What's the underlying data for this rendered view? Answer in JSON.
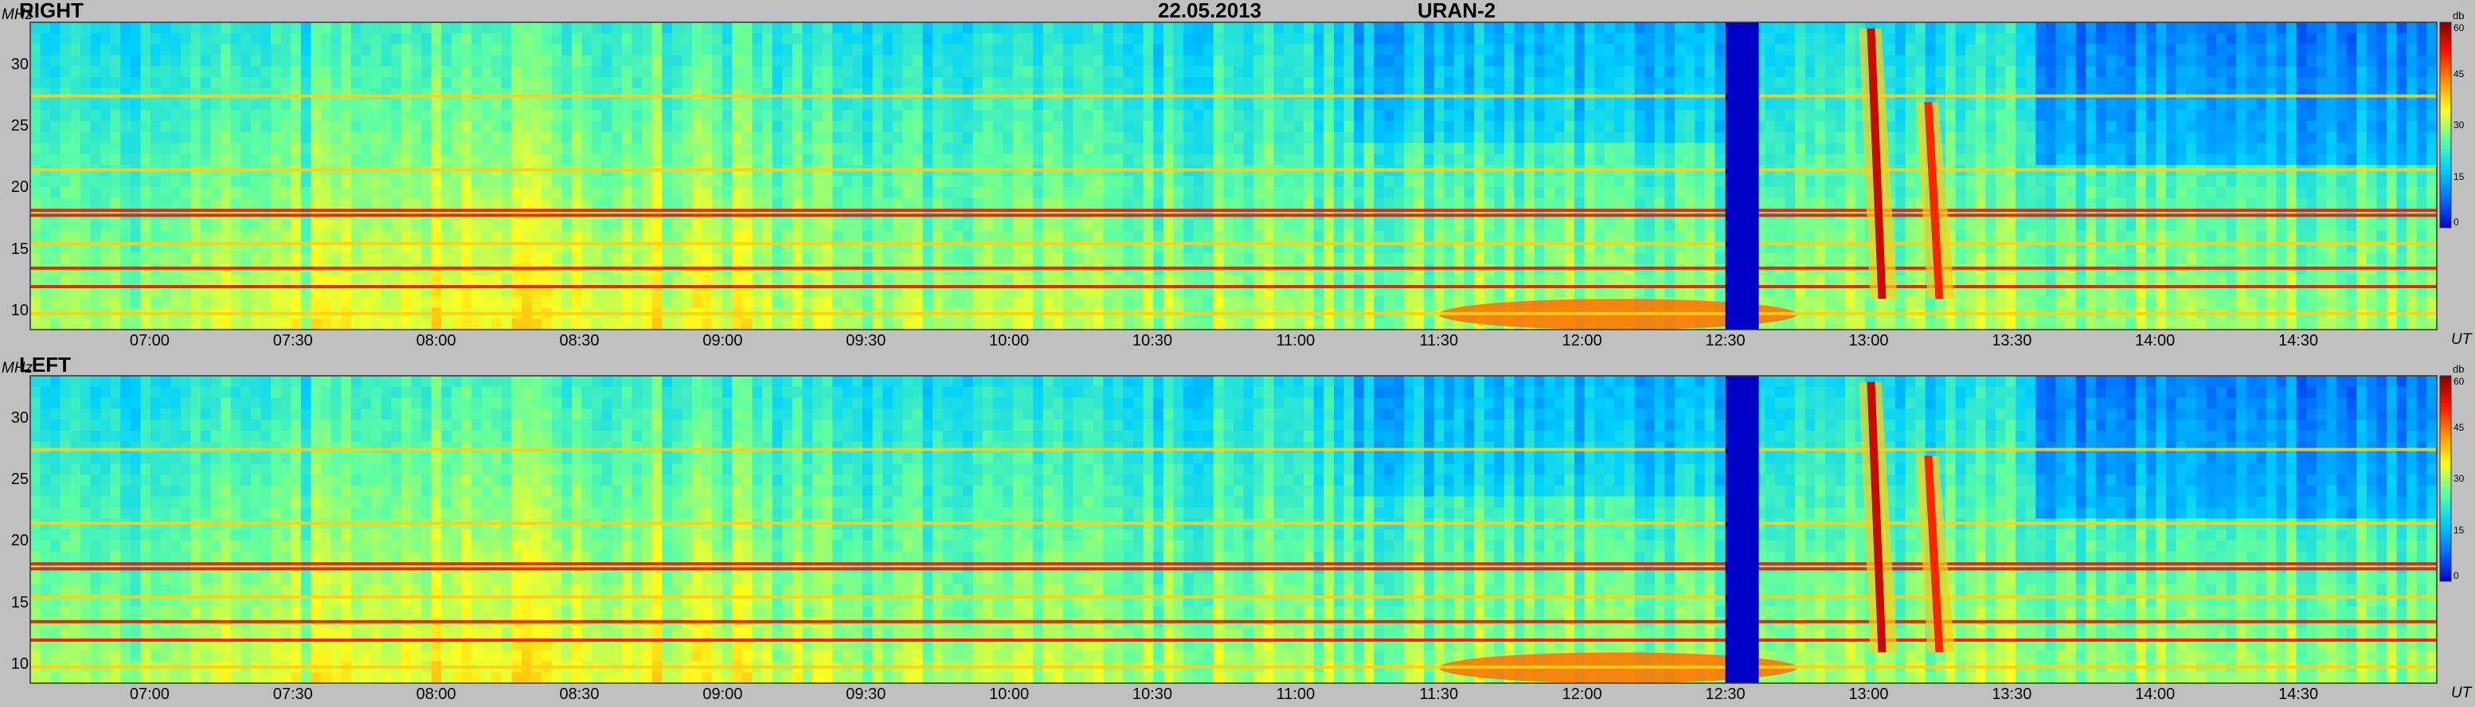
{
  "header": {
    "date": "22.05.2013",
    "instrument": "URAN-2"
  },
  "units": {
    "y": "MHz",
    "x": "UT",
    "colorbar": "db"
  },
  "panels": [
    {
      "id": "right",
      "label": "RIGHT"
    },
    {
      "id": "left",
      "label": "LEFT"
    }
  ],
  "chart_data": {
    "type": "heatmap",
    "title": "22.05.2013 URAN-2",
    "xlabel": "UT",
    "ylabel": "MHz",
    "colorbar_label": "db",
    "x_range": [
      "06:35",
      "14:59"
    ],
    "y_range": [
      8.5,
      33.5
    ],
    "x_ticks": [
      "07:00",
      "07:30",
      "08:00",
      "08:30",
      "09:00",
      "09:30",
      "10:00",
      "10:30",
      "11:00",
      "11:30",
      "12:00",
      "12:30",
      "13:00",
      "13:30",
      "14:00",
      "14:30"
    ],
    "y_ticks": [
      "10",
      "15",
      "20",
      "25",
      "30"
    ],
    "colorbar_ticks": [
      "0",
      "15",
      "30",
      "45",
      "60"
    ],
    "colorbar_range": [
      0,
      60
    ],
    "colormap": [
      "#0000c8",
      "#0070ff",
      "#00d0ff",
      "#60ffa0",
      "#ffff20",
      "#ff9000",
      "#ff1000",
      "#800000"
    ],
    "panels": [
      {
        "name": "RIGHT",
        "data_gap_ut": [
          "12:30",
          "12:37"
        ],
        "interference_lines_mhz": [
          9.8,
          12,
          13.5,
          15.5,
          17.8,
          18.2,
          21.5,
          27.5
        ],
        "bursts": [
          {
            "kind": "type III drifting burst",
            "ut": "13:01",
            "freq_mhz": [
              11,
              33
            ],
            "db": 55
          },
          {
            "kind": "type III drifting burst",
            "ut": "13:13",
            "freq_mhz": [
              11,
              27
            ],
            "db": 50
          },
          {
            "kind": "continuum",
            "ut": [
              "11:30",
              "12:45"
            ],
            "freq_mhz": [
              8.5,
              11
            ],
            "db": 45
          }
        ]
      },
      {
        "name": "LEFT",
        "data_gap_ut": [
          "12:30",
          "12:37"
        ],
        "interference_lines_mhz": [
          9.8,
          12,
          13.5,
          15.5,
          17.8,
          18.2,
          21.5,
          27.5
        ],
        "bursts": [
          {
            "kind": "type III drifting burst",
            "ut": "13:01",
            "freq_mhz": [
              11,
              33
            ],
            "db": 55
          },
          {
            "kind": "type III drifting burst",
            "ut": "13:13",
            "freq_mhz": [
              11,
              27
            ],
            "db": 50
          },
          {
            "kind": "continuum",
            "ut": [
              "11:30",
              "12:45"
            ],
            "freq_mhz": [
              8.5,
              11
            ],
            "db": 45
          }
        ]
      }
    ]
  }
}
